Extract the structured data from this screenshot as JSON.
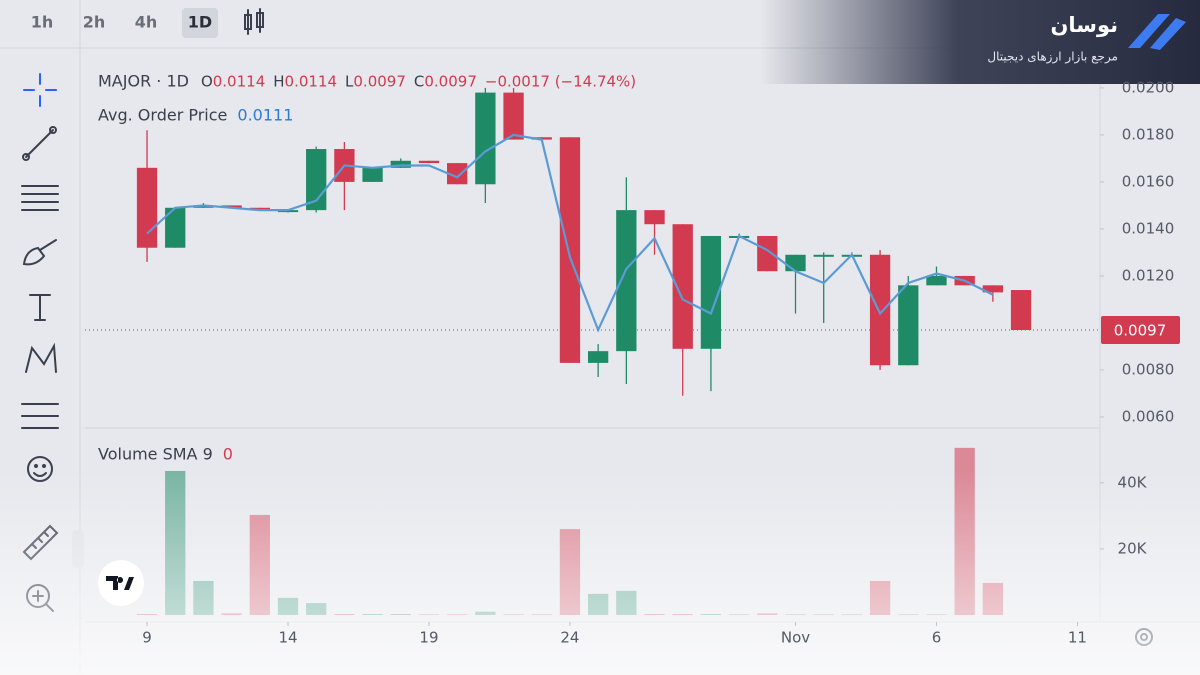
{
  "toolbar": {
    "timeframes": [
      "1h",
      "2h",
      "4h",
      "1D"
    ],
    "active": 3
  },
  "brand": {
    "name": "نوسان",
    "tagline": "مرجع بازار ارزهای دیجیتال"
  },
  "chart_data": {
    "type": "candlestick",
    "legend": {
      "symbol": "MAJOR · 1D",
      "items": [
        {
          "key": "O",
          "value": "0.0114"
        },
        {
          "key": "H",
          "value": "0.0114"
        },
        {
          "key": "L",
          "value": "0.0097"
        },
        {
          "key": "C",
          "value": "0.0097"
        }
      ],
      "change": "−0.0017 (−14.74%)"
    },
    "avg_line": {
      "name": "Avg. Order Price",
      "label": "0.0111",
      "color": "#5b9bd5",
      "values": [
        0.0138,
        0.0149,
        0.015,
        0.0149,
        0.0148,
        0.0148,
        0.0152,
        0.0167,
        0.0166,
        0.0167,
        0.0167,
        0.0162,
        0.0173,
        0.018,
        0.0178,
        0.0128,
        0.0097,
        0.0123,
        0.0136,
        0.011,
        0.0104,
        0.0137,
        0.0131,
        0.0122,
        0.0117,
        0.0129,
        0.0104,
        0.0117,
        0.0121,
        0.0118,
        0.0112,
        null
      ]
    },
    "up_color": "#1f8a66",
    "down_color": "#d23a50",
    "open": [
      0.0166,
      0.0132,
      0.0149,
      0.015,
      0.0149,
      0.0148,
      0.0148,
      0.0174,
      0.016,
      0.0166,
      0.0169,
      0.0168,
      0.0159,
      0.0198,
      0.0179,
      0.0179,
      0.0083,
      0.0088,
      0.0148,
      0.0142,
      0.0089,
      0.0137,
      0.0137,
      0.0122,
      0.0129,
      0.0129,
      0.0129,
      0.0082,
      0.0116,
      0.012,
      0.0116,
      0.0114
    ],
    "high": [
      0.0182,
      0.0149,
      0.0151,
      0.015,
      0.0149,
      0.0148,
      0.0175,
      0.0177,
      0.0166,
      0.017,
      0.0169,
      0.0168,
      0.02,
      0.02,
      0.0179,
      0.0179,
      0.0091,
      0.0162,
      0.0148,
      0.0142,
      0.0137,
      0.0138,
      0.0137,
      0.0129,
      0.013,
      0.013,
      0.0131,
      0.012,
      0.0124,
      0.012,
      0.0116,
      0.0114
    ],
    "low": [
      0.0126,
      0.0132,
      0.0149,
      0.0149,
      0.0148,
      0.0147,
      0.0147,
      0.0148,
      0.016,
      0.0166,
      0.0168,
      0.0159,
      0.0151,
      0.0178,
      0.0178,
      0.0083,
      0.0077,
      0.0074,
      0.0129,
      0.0069,
      0.0071,
      0.0137,
      0.0122,
      0.0104,
      0.01,
      0.0129,
      0.008,
      0.0082,
      0.0116,
      0.0116,
      0.0109,
      0.0097
    ],
    "close": [
      0.0132,
      0.0149,
      0.015,
      0.0149,
      0.0148,
      0.0148,
      0.0174,
      0.016,
      0.0166,
      0.0169,
      0.0168,
      0.0159,
      0.0198,
      0.0178,
      0.0178,
      0.0083,
      0.0088,
      0.0148,
      0.0142,
      0.0089,
      0.0137,
      0.0137,
      0.0122,
      0.0129,
      0.0129,
      0.0129,
      0.0082,
      0.0116,
      0.012,
      0.0116,
      0.0113,
      0.0097
    ],
    "last_price": {
      "value": 0.0097,
      "label": "0.0097"
    },
    "xlim": [
      -2.2,
      33.8
    ],
    "xticks": [
      {
        "value": 0,
        "label": "9"
      },
      {
        "value": 5,
        "label": "14"
      },
      {
        "value": 10,
        "label": "19"
      },
      {
        "value": 15,
        "label": "24"
      },
      {
        "value": 23,
        "label": "Nov"
      },
      {
        "value": 28,
        "label": "6"
      },
      {
        "value": 33,
        "label": "11"
      }
    ],
    "ylim": [
      0.00553,
      0.0214
    ],
    "yticks": [
      {
        "value": 0.02,
        "label": "0.0200"
      },
      {
        "value": 0.018,
        "label": "0.0180"
      },
      {
        "value": 0.016,
        "label": "0.0160"
      },
      {
        "value": 0.014,
        "label": "0.0140"
      },
      {
        "value": 0.012,
        "label": "0.0120"
      },
      {
        "value": 0.008,
        "label": "0.0080"
      },
      {
        "value": 0.006,
        "label": "0.0060"
      }
    ],
    "volume": {
      "name": "Volume SMA 9",
      "label": "0",
      "values": [
        300,
        43600,
        10300,
        500,
        30300,
        5200,
        3600,
        300,
        300,
        300,
        200,
        200,
        1000,
        200,
        200,
        26000,
        6400,
        7300,
        300,
        300,
        300,
        200,
        500,
        200,
        200,
        200,
        10300,
        200,
        200,
        50600,
        9700,
        0
      ],
      "ylim": [
        0,
        56000
      ],
      "yticks": [
        {
          "value": 40000,
          "label": "40K"
        },
        {
          "value": 20000,
          "label": "20K"
        }
      ]
    }
  }
}
